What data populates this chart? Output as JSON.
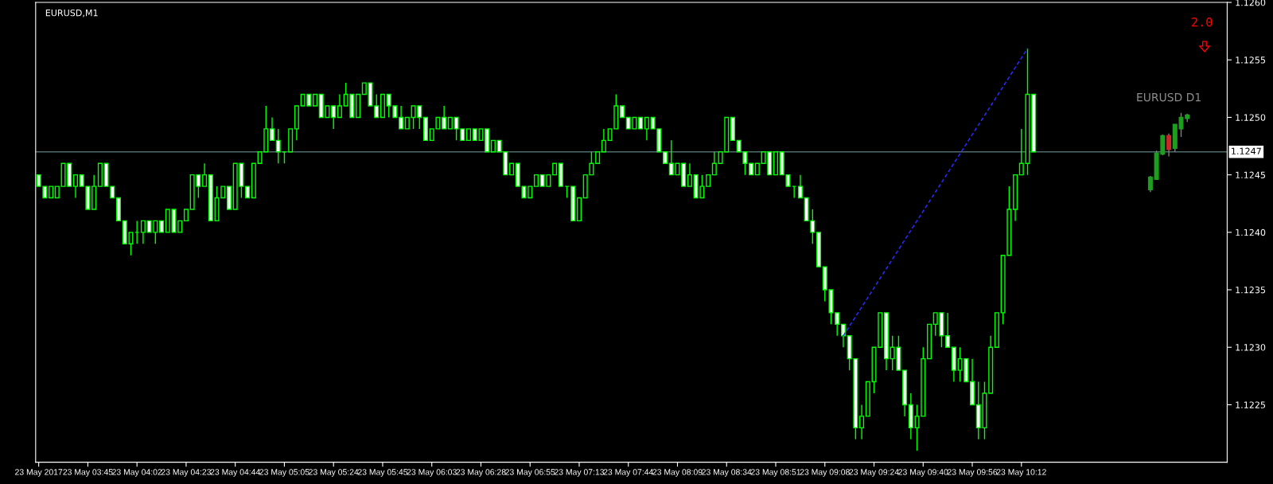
{
  "chart_data": {
    "type": "candlestick",
    "title": "EURUSD,M1",
    "categories": [
      "23 May 2017",
      null,
      null,
      null,
      null,
      null,
      null,
      null,
      "23 May 03:45",
      null,
      null,
      null,
      null,
      null,
      null,
      null,
      "23 May 04:02",
      null,
      null,
      null,
      null,
      null,
      null,
      null,
      "23 May 04:23",
      null,
      null,
      null,
      null,
      null,
      null,
      null,
      "23 May 04:44",
      null,
      null,
      null,
      null,
      null,
      null,
      null,
      "23 May 05:05",
      null,
      null,
      null,
      null,
      null,
      null,
      null,
      "23 May 05:24",
      null,
      null,
      null,
      null,
      null,
      null,
      null,
      "23 May 05:45",
      null,
      null,
      null,
      null,
      null,
      null,
      null,
      "23 May 06:03",
      null,
      null,
      null,
      null,
      null,
      null,
      null,
      "23 May 06:28",
      null,
      null,
      null,
      null,
      null,
      null,
      null,
      "23 May 06:55",
      null,
      null,
      null,
      null,
      null,
      null,
      null,
      "23 May 07:13",
      null,
      null,
      null,
      null,
      null,
      null,
      null,
      "23 May 07:44",
      null,
      null,
      null,
      null,
      null,
      null,
      null,
      "23 May 08:09",
      null,
      null,
      null,
      null,
      null,
      null,
      null,
      "23 May 08:34",
      null,
      null,
      null,
      null,
      null,
      null,
      null,
      "23 May 08:51",
      null,
      null,
      null,
      null,
      null,
      null,
      null,
      "23 May 09:08",
      null,
      null,
      null,
      null,
      null,
      null,
      null,
      "23 May 09:24",
      null,
      null,
      null,
      null,
      null,
      null,
      null,
      "23 May 09:40",
      null,
      null,
      null,
      null,
      null,
      null,
      null,
      "23 May 09:56",
      null,
      null,
      null,
      null,
      null,
      null,
      null,
      "23 May 10:12",
      null,
      null,
      null,
      null,
      null,
      null,
      null,
      null,
      null,
      null,
      null,
      null,
      null,
      null,
      null,
      null,
      null,
      null,
      null,
      null,
      null,
      null,
      null,
      null,
      null,
      null,
      null,
      null,
      null,
      null,
      null
    ],
    "ylim": [
      1.122,
      1.126
    ],
    "yticks": [
      {
        "value": 1.126,
        "label": "1.1260"
      },
      1.1255,
      {
        "value": 1.125,
        "label": "1.1250"
      },
      1.1245,
      {
        "value": 1.124,
        "label": "1.1240"
      },
      1.1235,
      {
        "value": 1.123,
        "label": "1.1230"
      },
      1.1225
    ],
    "ref_lines": [
      {
        "axis": "y",
        "value": 1.1247,
        "label": "1.1247",
        "color": "#4f6b6b"
      }
    ],
    "annotations": [
      "2.0"
    ],
    "series": [
      {
        "color": "#00ff00",
        "colors": [
          "#ffffff",
          "#ffffff",
          "#000000",
          "#000000",
          "#000000",
          "#ffffff",
          "#000000",
          "#ffffff",
          "#ffffff",
          "#000000",
          "#000000",
          "#ffffff",
          "#ffffff",
          "#ffffff",
          "#ffffff",
          "#000000",
          "#00ff00",
          "#000000",
          "#ffffff",
          "#000000",
          "#ffffff",
          "#000000",
          "#ffffff",
          "#000000",
          "#000000",
          "#000000",
          "#ffffff",
          "#000000",
          "#ffffff",
          "#000000",
          "#000000",
          "#ffffff",
          "#000000",
          "#ffffff",
          "#ffffff",
          "#000000",
          "#000000",
          "#000000",
          "#ffffff",
          "#ffffff",
          "#00ff00",
          "#000000",
          "#000000",
          "#000000",
          "#ffffff",
          "#000000",
          "#ffffff",
          "#000000",
          "#ffffff",
          "#000000",
          "#000000",
          "#ffffff",
          "#000000",
          "#000000",
          "#ffffff",
          "#ffffff",
          "#000000",
          "#ffffff",
          "#ffffff",
          "#ffffff",
          "#000000",
          "#000000",
          "#ffffff",
          "#ffffff",
          "#000000",
          "#000000",
          "#ffffff",
          "#000000",
          "#ffffff",
          "#ffffff",
          "#000000",
          "#ffffff",
          "#000000",
          "#ffffff",
          "#000000",
          "#ffffff",
          "#ffffff",
          "#000000",
          "#ffffff",
          "#ffffff",
          "#000000",
          "#000000",
          "#ffffff",
          "#000000",
          "#000000",
          "#ffffff",
          "#00ff00",
          "#ffffff",
          "#000000",
          "#000000",
          "#000000",
          "#000000",
          "#000000",
          "#000000",
          "#000000",
          "#ffffff",
          "#ffffff",
          "#000000",
          "#ffffff",
          "#000000",
          "#ffffff",
          "#ffffff",
          "#ffffff",
          "#ffffff",
          "#000000",
          "#ffffff",
          "#000000",
          "#ffffff",
          "#000000",
          "#000000",
          "#000000",
          "#000000",
          "#000000",
          "#ffffff",
          "#ffffff",
          "#ffffff",
          "#ffffff",
          "#000000",
          "#000000",
          "#ffffff",
          "#000000",
          "#ffffff",
          "#ffffff",
          "#00ff00",
          "#ffffff",
          "#ffffff",
          "#ffffff",
          "#ffffff",
          "#ffffff",
          "#ffffff",
          "#ffffff",
          "#ffffff",
          "#ffffff",
          "#ffffff",
          "#000000",
          "#000000",
          "#000000",
          "#000000",
          "#ffffff",
          "#000000",
          "#ffffff",
          "#ffffff",
          "#ffffff",
          "#000000",
          "#000000",
          "#000000",
          "#000000",
          "#ffffff",
          "#ffffff",
          "#ffffff",
          "#000000",
          "#ffffff",
          "#ffffff",
          "#ffffff",
          "#000000",
          "#000000",
          "#000000",
          "#000000",
          "#000000",
          "#000000",
          "#000000",
          "#000000",
          "#ffffff",
          null,
          null,
          null,
          null,
          null,
          null,
          null,
          null,
          null,
          null,
          null,
          null,
          null,
          null,
          null,
          null,
          null,
          null,
          null,
          null,
          null,
          null,
          null,
          null,
          null,
          null,
          null,
          null,
          null
        ],
        "ohlc": [
          [
            1.1245,
            1.1245,
            1.1244,
            1.1244
          ],
          [
            1.1244,
            1.1244,
            1.1243,
            1.1243
          ],
          [
            1.1243,
            1.1244,
            1.1243,
            1.1244
          ],
          [
            1.1243,
            1.1244,
            1.1243,
            1.1244
          ],
          [
            1.1244,
            1.1246,
            1.1244,
            1.1246
          ],
          [
            1.1246,
            1.1246,
            1.1244,
            1.1244
          ],
          [
            1.1244,
            1.1245,
            1.1243,
            1.1245
          ],
          [
            1.1245,
            1.1245,
            1.1244,
            1.1244
          ],
          [
            1.1244,
            1.1244,
            1.1242,
            1.1242
          ],
          [
            1.1242,
            1.1245,
            1.1242,
            1.1244
          ],
          [
            1.1244,
            1.1246,
            1.1244,
            1.1246
          ],
          [
            1.1246,
            1.1246,
            1.1244,
            1.1244
          ],
          [
            1.1244,
            1.1244,
            1.1243,
            1.1243
          ],
          [
            1.1243,
            1.1243,
            1.1241,
            1.1241
          ],
          [
            1.1241,
            1.1241,
            1.1239,
            1.1239
          ],
          [
            1.1239,
            1.124,
            1.1238,
            1.124
          ],
          [
            1.124,
            1.1241,
            1.1239,
            1.124
          ],
          [
            1.124,
            1.1241,
            1.1239,
            1.1241
          ],
          [
            1.1241,
            1.1241,
            1.124,
            1.124
          ],
          [
            1.124,
            1.1241,
            1.1239,
            1.1241
          ],
          [
            1.1241,
            1.1241,
            1.124,
            1.124
          ],
          [
            1.124,
            1.1242,
            1.124,
            1.1242
          ],
          [
            1.1242,
            1.1242,
            1.124,
            1.124
          ],
          [
            1.124,
            1.1241,
            1.124,
            1.1241
          ],
          [
            1.1241,
            1.1242,
            1.1241,
            1.1242
          ],
          [
            1.1242,
            1.1245,
            1.1242,
            1.1245
          ],
          [
            1.1245,
            1.1245,
            1.1243,
            1.1244
          ],
          [
            1.1244,
            1.1246,
            1.1244,
            1.1245
          ],
          [
            1.1245,
            1.1245,
            1.1241,
            1.1241
          ],
          [
            1.1241,
            1.1244,
            1.1241,
            1.1243
          ],
          [
            1.1243,
            1.1244,
            1.1243,
            1.1244
          ],
          [
            1.1244,
            1.1244,
            1.1242,
            1.1242
          ],
          [
            1.1242,
            1.1246,
            1.1242,
            1.1246
          ],
          [
            1.1246,
            1.1246,
            1.1243,
            1.1244
          ],
          [
            1.1244,
            1.1244,
            1.1243,
            1.1243
          ],
          [
            1.1243,
            1.1246,
            1.1243,
            1.1246
          ],
          [
            1.1246,
            1.1247,
            1.1246,
            1.1247
          ],
          [
            1.1247,
            1.1251,
            1.1247,
            1.1249
          ],
          [
            1.1249,
            1.125,
            1.1248,
            1.1248
          ],
          [
            1.1248,
            1.1249,
            1.1246,
            1.1247
          ],
          [
            1.1247,
            1.1247,
            1.1246,
            1.1247
          ],
          [
            1.1247,
            1.1249,
            1.1247,
            1.1249
          ],
          [
            1.1249,
            1.1251,
            1.1248,
            1.1251
          ],
          [
            1.1251,
            1.1252,
            1.1251,
            1.1252
          ],
          [
            1.1252,
            1.1252,
            1.1251,
            1.1251
          ],
          [
            1.1251,
            1.1252,
            1.1251,
            1.1252
          ],
          [
            1.1252,
            1.1252,
            1.125,
            1.125
          ],
          [
            1.125,
            1.1251,
            1.125,
            1.1251
          ],
          [
            1.1251,
            1.1251,
            1.1249,
            1.125
          ],
          [
            1.125,
            1.1252,
            1.125,
            1.1251
          ],
          [
            1.1251,
            1.1253,
            1.1251,
            1.1252
          ],
          [
            1.1252,
            1.1252,
            1.125,
            1.125
          ],
          [
            1.125,
            1.1252,
            1.125,
            1.1252
          ],
          [
            1.1252,
            1.1253,
            1.1252,
            1.1253
          ],
          [
            1.1253,
            1.1253,
            1.1251,
            1.1251
          ],
          [
            1.1251,
            1.1252,
            1.125,
            1.125
          ],
          [
            1.125,
            1.1252,
            1.125,
            1.1252
          ],
          [
            1.1252,
            1.1252,
            1.125,
            1.1251
          ],
          [
            1.1251,
            1.1251,
            1.125,
            1.125
          ],
          [
            1.125,
            1.1251,
            1.1249,
            1.1249
          ],
          [
            1.1249,
            1.125,
            1.1249,
            1.125
          ],
          [
            1.125,
            1.1251,
            1.1249,
            1.1251
          ],
          [
            1.1251,
            1.1251,
            1.1249,
            1.125
          ],
          [
            1.125,
            1.125,
            1.1248,
            1.1248
          ],
          [
            1.1248,
            1.1249,
            1.1248,
            1.1249
          ],
          [
            1.1249,
            1.125,
            1.1249,
            1.125
          ],
          [
            1.125,
            1.1251,
            1.1249,
            1.1249
          ],
          [
            1.1249,
            1.125,
            1.1249,
            1.125
          ],
          [
            1.125,
            1.125,
            1.1248,
            1.1249
          ],
          [
            1.1249,
            1.1249,
            1.1248,
            1.1248
          ],
          [
            1.1248,
            1.1249,
            1.1248,
            1.1249
          ],
          [
            1.1249,
            1.1249,
            1.1248,
            1.1248
          ],
          [
            1.1248,
            1.1249,
            1.1248,
            1.1249
          ],
          [
            1.1249,
            1.1249,
            1.1247,
            1.1247
          ],
          [
            1.1247,
            1.1248,
            1.1247,
            1.1248
          ],
          [
            1.1248,
            1.1248,
            1.1247,
            1.1247
          ],
          [
            1.1247,
            1.1247,
            1.1245,
            1.1245
          ],
          [
            1.1245,
            1.1246,
            1.1245,
            1.1246
          ],
          [
            1.1246,
            1.1246,
            1.1244,
            1.1244
          ],
          [
            1.1244,
            1.1244,
            1.1243,
            1.1243
          ],
          [
            1.1243,
            1.1244,
            1.1243,
            1.1244
          ],
          [
            1.1244,
            1.1245,
            1.1244,
            1.1245
          ],
          [
            1.1245,
            1.1245,
            1.1244,
            1.1244
          ],
          [
            1.1244,
            1.1245,
            1.1244,
            1.1245
          ],
          [
            1.1245,
            1.1246,
            1.1245,
            1.1246
          ],
          [
            1.1246,
            1.1246,
            1.1244,
            1.1244
          ],
          [
            1.1244,
            1.1244,
            1.1243,
            1.1244
          ],
          [
            1.1244,
            1.1244,
            1.1241,
            1.1241
          ],
          [
            1.1241,
            1.1243,
            1.1241,
            1.1243
          ],
          [
            1.1243,
            1.1245,
            1.1243,
            1.1245
          ],
          [
            1.1245,
            1.1247,
            1.1245,
            1.1246
          ],
          [
            1.1246,
            1.1247,
            1.1246,
            1.1247
          ],
          [
            1.1247,
            1.1249,
            1.1247,
            1.1248
          ],
          [
            1.1248,
            1.1249,
            1.1248,
            1.1249
          ],
          [
            1.1249,
            1.1252,
            1.1249,
            1.1251
          ],
          [
            1.1251,
            1.1251,
            1.125,
            1.125
          ],
          [
            1.125,
            1.125,
            1.1249,
            1.1249
          ],
          [
            1.1249,
            1.125,
            1.1249,
            1.125
          ],
          [
            1.125,
            1.125,
            1.1249,
            1.1249
          ],
          [
            1.1249,
            1.125,
            1.1248,
            1.125
          ],
          [
            1.125,
            1.125,
            1.1249,
            1.1249
          ],
          [
            1.1249,
            1.1249,
            1.1247,
            1.1247
          ],
          [
            1.1247,
            1.1247,
            1.1246,
            1.1246
          ],
          [
            1.1246,
            1.1248,
            1.1245,
            1.1245
          ],
          [
            1.1245,
            1.1246,
            1.1245,
            1.1246
          ],
          [
            1.1246,
            1.1246,
            1.1244,
            1.1244
          ],
          [
            1.1244,
            1.1246,
            1.1244,
            1.1245
          ],
          [
            1.1245,
            1.1245,
            1.1243,
            1.1243
          ],
          [
            1.1243,
            1.1245,
            1.1243,
            1.1244
          ],
          [
            1.1244,
            1.1245,
            1.1244,
            1.1245
          ],
          [
            1.1245,
            1.1247,
            1.1245,
            1.1246
          ],
          [
            1.1246,
            1.1247,
            1.1246,
            1.1247
          ],
          [
            1.1247,
            1.125,
            1.1247,
            1.125
          ],
          [
            1.125,
            1.125,
            1.1248,
            1.1248
          ],
          [
            1.1248,
            1.1248,
            1.1247,
            1.1247
          ],
          [
            1.1247,
            1.1247,
            1.1245,
            1.1246
          ],
          [
            1.1246,
            1.1246,
            1.1245,
            1.1245
          ],
          [
            1.1245,
            1.1246,
            1.1245,
            1.1246
          ],
          [
            1.1246,
            1.1247,
            1.1246,
            1.1247
          ],
          [
            1.1247,
            1.1247,
            1.1245,
            1.1245
          ],
          [
            1.1245,
            1.1247,
            1.1245,
            1.1247
          ],
          [
            1.1247,
            1.1247,
            1.1245,
            1.1245
          ],
          [
            1.1245,
            1.1245,
            1.1244,
            1.1244
          ],
          [
            1.1244,
            1.1244,
            1.1243,
            1.1244
          ],
          [
            1.1244,
            1.1245,
            1.1243,
            1.1243
          ],
          [
            1.1243,
            1.1243,
            1.1241,
            1.1241
          ],
          [
            1.1241,
            1.1242,
            1.1239,
            1.124
          ],
          [
            1.124,
            1.124,
            1.1237,
            1.1237
          ],
          [
            1.1237,
            1.1237,
            1.1234,
            1.1235
          ],
          [
            1.1235,
            1.1235,
            1.1232,
            1.1233
          ],
          [
            1.1233,
            1.1233,
            1.1231,
            1.1232
          ],
          [
            1.1232,
            1.1232,
            1.123,
            1.1231
          ],
          [
            1.1231,
            1.1231,
            1.1228,
            1.1229
          ],
          [
            1.1229,
            1.1229,
            1.1222,
            1.1223
          ],
          [
            1.1223,
            1.1225,
            1.1222,
            1.1224
          ],
          [
            1.1224,
            1.1227,
            1.1224,
            1.1227
          ],
          [
            1.1227,
            1.123,
            1.1226,
            1.123
          ],
          [
            1.123,
            1.1233,
            1.123,
            1.1233
          ],
          [
            1.1233,
            1.1233,
            1.1228,
            1.1229
          ],
          [
            1.1229,
            1.1231,
            1.1228,
            1.123
          ],
          [
            1.123,
            1.1231,
            1.1228,
            1.1228
          ],
          [
            1.1228,
            1.1228,
            1.1224,
            1.1225
          ],
          [
            1.1225,
            1.1226,
            1.1222,
            1.1223
          ],
          [
            1.1223,
            1.1225,
            1.1221,
            1.1224
          ],
          [
            1.1224,
            1.123,
            1.1224,
            1.1229
          ],
          [
            1.1229,
            1.1232,
            1.1229,
            1.1232
          ],
          [
            1.1232,
            1.1233,
            1.1231,
            1.1233
          ],
          [
            1.1233,
            1.1233,
            1.123,
            1.1231
          ],
          [
            1.1231,
            1.1233,
            1.123,
            1.123
          ],
          [
            1.123,
            1.123,
            1.1227,
            1.1228
          ],
          [
            1.1228,
            1.123,
            1.1227,
            1.1229
          ],
          [
            1.1229,
            1.1229,
            1.1227,
            1.1227
          ],
          [
            1.1227,
            1.1229,
            1.1225,
            1.1225
          ],
          [
            1.1225,
            1.1227,
            1.1222,
            1.1223
          ],
          [
            1.1223,
            1.1227,
            1.1222,
            1.1226
          ],
          [
            1.1226,
            1.1231,
            1.1226,
            1.123
          ],
          [
            1.123,
            1.1233,
            1.123,
            1.1233
          ],
          [
            1.1233,
            1.1238,
            1.1232,
            1.1238
          ],
          [
            1.1238,
            1.1244,
            1.1238,
            1.1242
          ],
          [
            1.1242,
            1.1245,
            1.1241,
            1.1245
          ],
          [
            1.1245,
            1.1249,
            1.1245,
            1.1246
          ],
          [
            1.1246,
            1.1256,
            1.1245,
            1.1252
          ],
          [
            1.1252,
            1.1252,
            1.1247,
            1.1247
          ],
          null,
          null,
          null,
          null,
          null,
          null,
          null,
          null,
          null,
          null,
          null,
          null,
          null,
          null,
          null,
          null,
          null,
          null,
          null,
          null,
          null,
          null,
          null,
          null,
          null,
          null,
          null,
          null,
          null
        ]
      },
      {
        "name": "EURUSD D1",
        "color": "#808080",
        "colors": [
          null,
          null,
          null,
          null,
          null,
          null,
          null,
          null,
          null,
          null,
          null,
          null,
          null,
          null,
          null,
          null,
          null,
          null,
          null,
          null,
          null,
          null,
          null,
          null,
          null,
          null,
          null,
          null,
          null,
          null,
          null,
          null,
          null,
          null,
          null,
          null,
          null,
          null,
          null,
          null,
          null,
          null,
          null,
          null,
          null,
          null,
          null,
          null,
          null,
          null,
          null,
          null,
          null,
          null,
          null,
          null,
          null,
          null,
          null,
          null,
          null,
          null,
          null,
          null,
          null,
          null,
          null,
          null,
          null,
          null,
          null,
          null,
          null,
          null,
          null,
          null,
          null,
          null,
          null,
          null,
          null,
          null,
          null,
          null,
          null,
          null,
          null,
          null,
          null,
          null,
          null,
          null,
          null,
          null,
          null,
          null,
          null,
          null,
          null,
          null,
          null,
          null,
          null,
          null,
          null,
          null,
          null,
          null,
          null,
          null,
          null,
          null,
          null,
          null,
          null,
          null,
          null,
          null,
          null,
          null,
          null,
          null,
          null,
          null,
          null,
          null,
          null,
          null,
          null,
          null,
          null,
          null,
          null,
          null,
          null,
          null,
          null,
          null,
          null,
          null,
          null,
          null,
          null,
          null,
          null,
          null,
          null,
          null,
          null,
          null,
          null,
          null,
          null,
          null,
          null,
          null,
          null,
          null,
          null,
          null,
          null,
          null,
          null,
          null,
          null,
          null,
          null,
          null,
          null,
          null,
          null,
          null,
          null,
          null,
          null,
          null,
          null,
          null,
          null,
          null,
          null,
          "#1e9e1e",
          "#1e9e1e",
          "#1e9e1e",
          "#c82828",
          "#1e9e1e",
          "#1e9e1e",
          "#1e9e1e",
          null,
          null,
          null,
          null
        ],
        "ohlc": [
          null,
          null,
          null,
          null,
          null,
          null,
          null,
          null,
          null,
          null,
          null,
          null,
          null,
          null,
          null,
          null,
          null,
          null,
          null,
          null,
          null,
          null,
          null,
          null,
          null,
          null,
          null,
          null,
          null,
          null,
          null,
          null,
          null,
          null,
          null,
          null,
          null,
          null,
          null,
          null,
          null,
          null,
          null,
          null,
          null,
          null,
          null,
          null,
          null,
          null,
          null,
          null,
          null,
          null,
          null,
          null,
          null,
          null,
          null,
          null,
          null,
          null,
          null,
          null,
          null,
          null,
          null,
          null,
          null,
          null,
          null,
          null,
          null,
          null,
          null,
          null,
          null,
          null,
          null,
          null,
          null,
          null,
          null,
          null,
          null,
          null,
          null,
          null,
          null,
          null,
          null,
          null,
          null,
          null,
          null,
          null,
          null,
          null,
          null,
          null,
          null,
          null,
          null,
          null,
          null,
          null,
          null,
          null,
          null,
          null,
          null,
          null,
          null,
          null,
          null,
          null,
          null,
          null,
          null,
          null,
          null,
          null,
          null,
          null,
          null,
          null,
          null,
          null,
          null,
          null,
          null,
          null,
          null,
          null,
          null,
          null,
          null,
          null,
          null,
          null,
          null,
          null,
          null,
          null,
          null,
          null,
          null,
          null,
          null,
          null,
          null,
          null,
          null,
          null,
          null,
          null,
          null,
          null,
          null,
          null,
          null,
          null,
          null,
          null,
          null,
          null,
          null,
          null,
          null,
          null,
          null,
          null,
          null,
          null,
          null,
          null,
          null,
          null,
          null,
          null,
          null,
          [
            1.12437,
            1.12449,
            1.12435,
            1.12448
          ],
          [
            1.12446,
            1.12471,
            1.12446,
            1.12469
          ],
          [
            1.12468,
            1.12485,
            1.12467,
            1.12484
          ],
          [
            1.12484,
            1.12486,
            1.12466,
            1.12472
          ],
          [
            1.12473,
            1.12494,
            1.1247,
            1.12494
          ],
          [
            1.1249,
            1.12504,
            1.12483,
            1.125
          ],
          [
            1.12499,
            1.12503,
            1.12496,
            1.12502
          ],
          null,
          null,
          null,
          null
        ]
      },
      {
        "type": "line",
        "values": [
          null,
          null,
          null,
          null,
          null,
          null,
          null,
          null,
          null,
          null,
          null,
          null,
          null,
          null,
          null,
          null,
          null,
          null,
          null,
          null,
          null,
          null,
          null,
          null,
          null,
          null,
          null,
          null,
          null,
          null,
          null,
          null,
          null,
          null,
          null,
          null,
          null,
          null,
          null,
          null,
          null,
          null,
          null,
          null,
          null,
          null,
          null,
          null,
          null,
          null,
          null,
          null,
          null,
          null,
          null,
          null,
          null,
          null,
          null,
          null,
          null,
          null,
          null,
          null,
          null,
          null,
          null,
          null,
          null,
          null,
          null,
          null,
          null,
          null,
          null,
          null,
          null,
          null,
          null,
          null,
          null,
          null,
          null,
          null,
          null,
          null,
          null,
          null,
          null,
          null,
          null,
          null,
          null,
          null,
          null,
          null,
          null,
          null,
          null,
          null,
          null,
          null,
          null,
          null,
          null,
          null,
          null,
          null,
          null,
          null,
          null,
          null,
          null,
          null,
          null,
          null,
          null,
          null,
          null,
          null,
          null,
          null,
          null,
          null,
          null,
          null,
          null,
          null,
          null,
          null,
          null,
          1.1231,
          null,
          null,
          null,
          null,
          null,
          null,
          null,
          null,
          null,
          null,
          null,
          null,
          null,
          null,
          null,
          null,
          null,
          null,
          null,
          null,
          null,
          null,
          null,
          null,
          null,
          null,
          null,
          null,
          null,
          1.1256,
          null,
          null,
          null,
          null,
          null,
          null,
          null,
          null,
          null,
          null,
          null,
          null,
          null,
          null,
          null,
          null,
          null,
          null,
          null,
          null,
          null,
          null,
          null,
          null,
          null,
          null,
          null,
          null,
          null,
          null
        ],
        "color": "#2a2aff",
        "line_style": "dashed"
      }
    ]
  }
}
